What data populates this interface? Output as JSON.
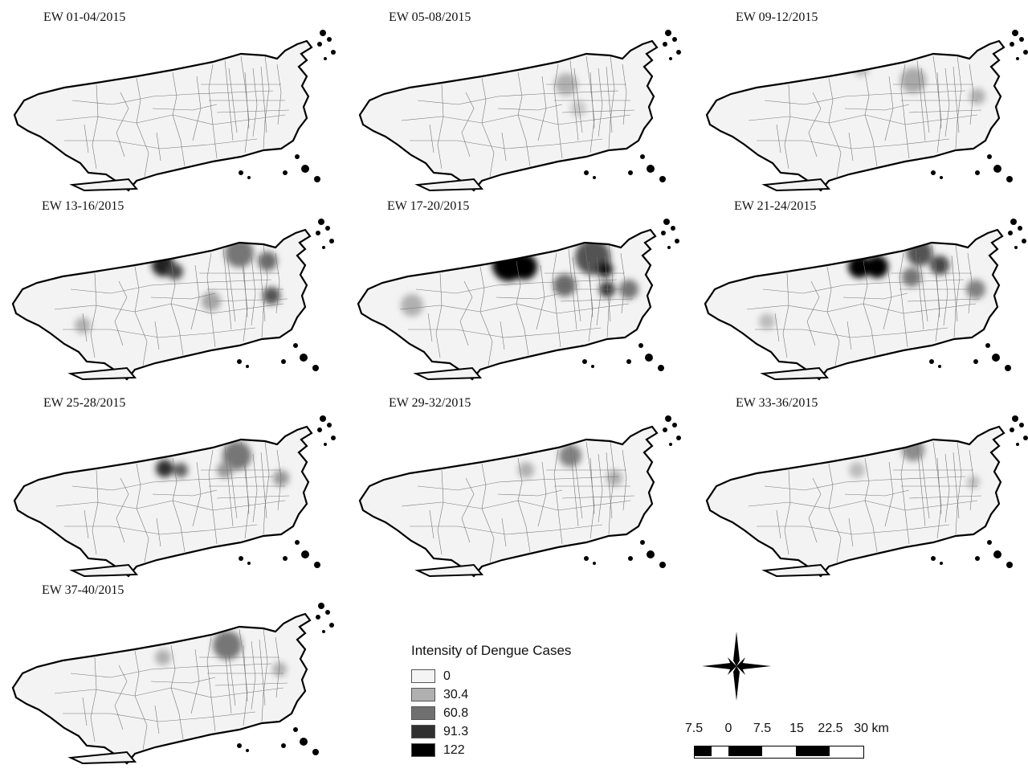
{
  "panels": [
    {
      "title": "EW 01-04/2015",
      "hotspots": []
    },
    {
      "title": "EW 05-08/2015",
      "hotspots": [
        {
          "cx": 265,
          "cy": 80,
          "r": 14,
          "v": 0.25
        },
        {
          "cx": 280,
          "cy": 110,
          "r": 10,
          "v": 0.15
        }
      ]
    },
    {
      "title": "EW 09-12/2015",
      "hotspots": [
        {
          "cx": 200,
          "cy": 60,
          "r": 10,
          "v": 0.2
        },
        {
          "cx": 265,
          "cy": 75,
          "r": 16,
          "v": 0.28
        },
        {
          "cx": 345,
          "cy": 95,
          "r": 10,
          "v": 0.25
        }
      ]
    },
    {
      "title": "EW 13-16/2015",
      "hotspots": [
        {
          "cx": 195,
          "cy": 70,
          "r": 14,
          "v": 0.85
        },
        {
          "cx": 210,
          "cy": 78,
          "r": 10,
          "v": 0.7
        },
        {
          "cx": 290,
          "cy": 55,
          "r": 18,
          "v": 0.5
        },
        {
          "cx": 325,
          "cy": 65,
          "r": 12,
          "v": 0.55
        },
        {
          "cx": 330,
          "cy": 108,
          "r": 11,
          "v": 0.65
        },
        {
          "cx": 255,
          "cy": 115,
          "r": 12,
          "v": 0.3
        },
        {
          "cx": 95,
          "cy": 145,
          "r": 10,
          "v": 0.25
        }
      ]
    },
    {
      "title": "EW 17-20/2015",
      "hotspots": [
        {
          "cx": 195,
          "cy": 70,
          "r": 20,
          "v": 1.0
        },
        {
          "cx": 215,
          "cy": 72,
          "r": 16,
          "v": 1.0
        },
        {
          "cx": 300,
          "cy": 60,
          "r": 22,
          "v": 0.65
        },
        {
          "cx": 315,
          "cy": 75,
          "r": 10,
          "v": 0.9
        },
        {
          "cx": 318,
          "cy": 100,
          "r": 10,
          "v": 0.75
        },
        {
          "cx": 265,
          "cy": 95,
          "r": 14,
          "v": 0.55
        },
        {
          "cx": 345,
          "cy": 100,
          "r": 12,
          "v": 0.5
        },
        {
          "cx": 75,
          "cy": 120,
          "r": 14,
          "v": 0.25
        }
      ]
    },
    {
      "title": "EW 21-24/2015",
      "hotspots": [
        {
          "cx": 200,
          "cy": 72,
          "r": 14,
          "v": 1.0
        },
        {
          "cx": 222,
          "cy": 72,
          "r": 14,
          "v": 1.0
        },
        {
          "cx": 275,
          "cy": 55,
          "r": 16,
          "v": 0.65
        },
        {
          "cx": 300,
          "cy": 70,
          "r": 12,
          "v": 0.7
        },
        {
          "cx": 265,
          "cy": 85,
          "r": 12,
          "v": 0.5
        },
        {
          "cx": 345,
          "cy": 100,
          "r": 12,
          "v": 0.45
        },
        {
          "cx": 85,
          "cy": 140,
          "r": 10,
          "v": 0.2
        }
      ]
    },
    {
      "title": "EW 25-28/2015",
      "hotspots": [
        {
          "cx": 195,
          "cy": 78,
          "r": 11,
          "v": 0.8
        },
        {
          "cx": 215,
          "cy": 80,
          "r": 9,
          "v": 0.6
        },
        {
          "cx": 285,
          "cy": 62,
          "r": 18,
          "v": 0.5
        },
        {
          "cx": 270,
          "cy": 80,
          "r": 10,
          "v": 0.35
        },
        {
          "cx": 340,
          "cy": 90,
          "r": 10,
          "v": 0.35
        }
      ]
    },
    {
      "title": "EW 29-32/2015",
      "hotspots": [
        {
          "cx": 270,
          "cy": 62,
          "r": 14,
          "v": 0.45
        },
        {
          "cx": 215,
          "cy": 80,
          "r": 10,
          "v": 0.25
        },
        {
          "cx": 325,
          "cy": 90,
          "r": 10,
          "v": 0.25
        }
      ]
    },
    {
      "title": "EW 33-36/2015",
      "hotspots": [
        {
          "cx": 265,
          "cy": 55,
          "r": 14,
          "v": 0.4
        },
        {
          "cx": 195,
          "cy": 80,
          "r": 10,
          "v": 0.2
        },
        {
          "cx": 340,
          "cy": 95,
          "r": 8,
          "v": 0.2
        }
      ]
    },
    {
      "title": "EW 37-40/2015",
      "hotspots": [
        {
          "cx": 275,
          "cy": 65,
          "r": 18,
          "v": 0.5
        },
        {
          "cx": 195,
          "cy": 80,
          "r": 10,
          "v": 0.25
        },
        {
          "cx": 340,
          "cy": 95,
          "r": 9,
          "v": 0.25
        }
      ]
    }
  ],
  "legend": {
    "title": "Intensity of Dengue Cases",
    "items": [
      {
        "label": "0",
        "color": "#f4f4f4"
      },
      {
        "label": "30.4",
        "color": "#b0b0b0"
      },
      {
        "label": "60.8",
        "color": "#707070"
      },
      {
        "label": "91.3",
        "color": "#303030"
      },
      {
        "label": "122",
        "color": "#000000"
      }
    ]
  },
  "scalebar": {
    "labels": [
      "7.5",
      "0",
      "7.5",
      "15",
      "22.5",
      "30 km"
    ]
  }
}
